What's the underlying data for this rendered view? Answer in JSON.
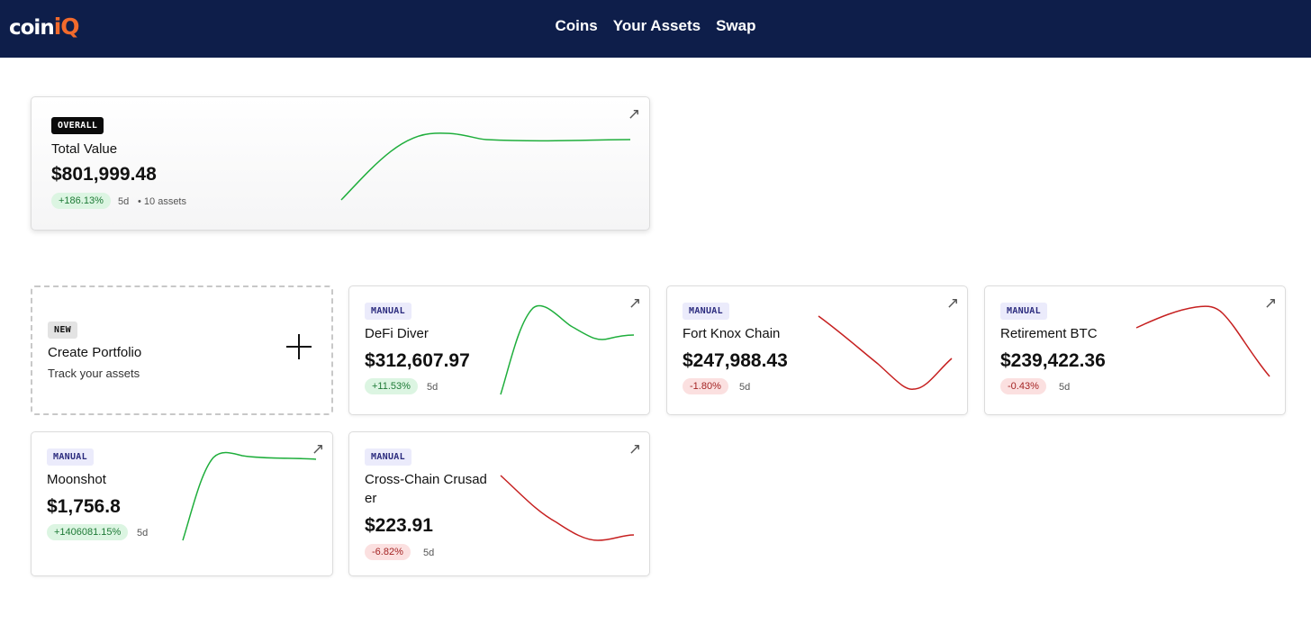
{
  "brand": {
    "name_a": "coin",
    "name_b": "iQ",
    "accent": "#f26a2c",
    "bar_color": "#0e1e4a"
  },
  "nav": {
    "items": [
      "Coins",
      "Your Assets",
      "Swap"
    ]
  },
  "overall": {
    "badge": "OVERALL",
    "title": "Total Value",
    "value": "$801,999.48",
    "change": "+186.13%",
    "period": "5d",
    "assets": "• 10 assets",
    "trend": "up",
    "expand_icon": "expand-arrow-icon"
  },
  "create": {
    "badge": "NEW",
    "title": "Create Portfolio",
    "subtitle": "Track your assets",
    "icon": "plus-icon"
  },
  "portfolios": [
    {
      "badge": "MANUAL",
      "title": "DeFi Diver",
      "value": "$312,607.97",
      "change": "+11.53%",
      "period": "5d",
      "trend": "up"
    },
    {
      "badge": "MANUAL",
      "title": "Fort Knox Chain",
      "value": "$247,988.43",
      "change": "-1.80%",
      "period": "5d",
      "trend": "down"
    },
    {
      "badge": "MANUAL",
      "title": "Retirement BTC",
      "value": "$239,422.36",
      "change": "-0.43%",
      "period": "5d",
      "trend": "down"
    },
    {
      "badge": "MANUAL",
      "title": "Moonshot",
      "value": "$1,756.8",
      "change": "+1406081.15%",
      "period": "5d",
      "trend": "up"
    },
    {
      "badge": "MANUAL",
      "title": "Cross-Chain Crusader",
      "value": "$223.91",
      "change": "-6.82%",
      "period": "5d",
      "trend": "down"
    }
  ],
  "colors": {
    "up": "#1fae3c",
    "down": "#c62020"
  }
}
